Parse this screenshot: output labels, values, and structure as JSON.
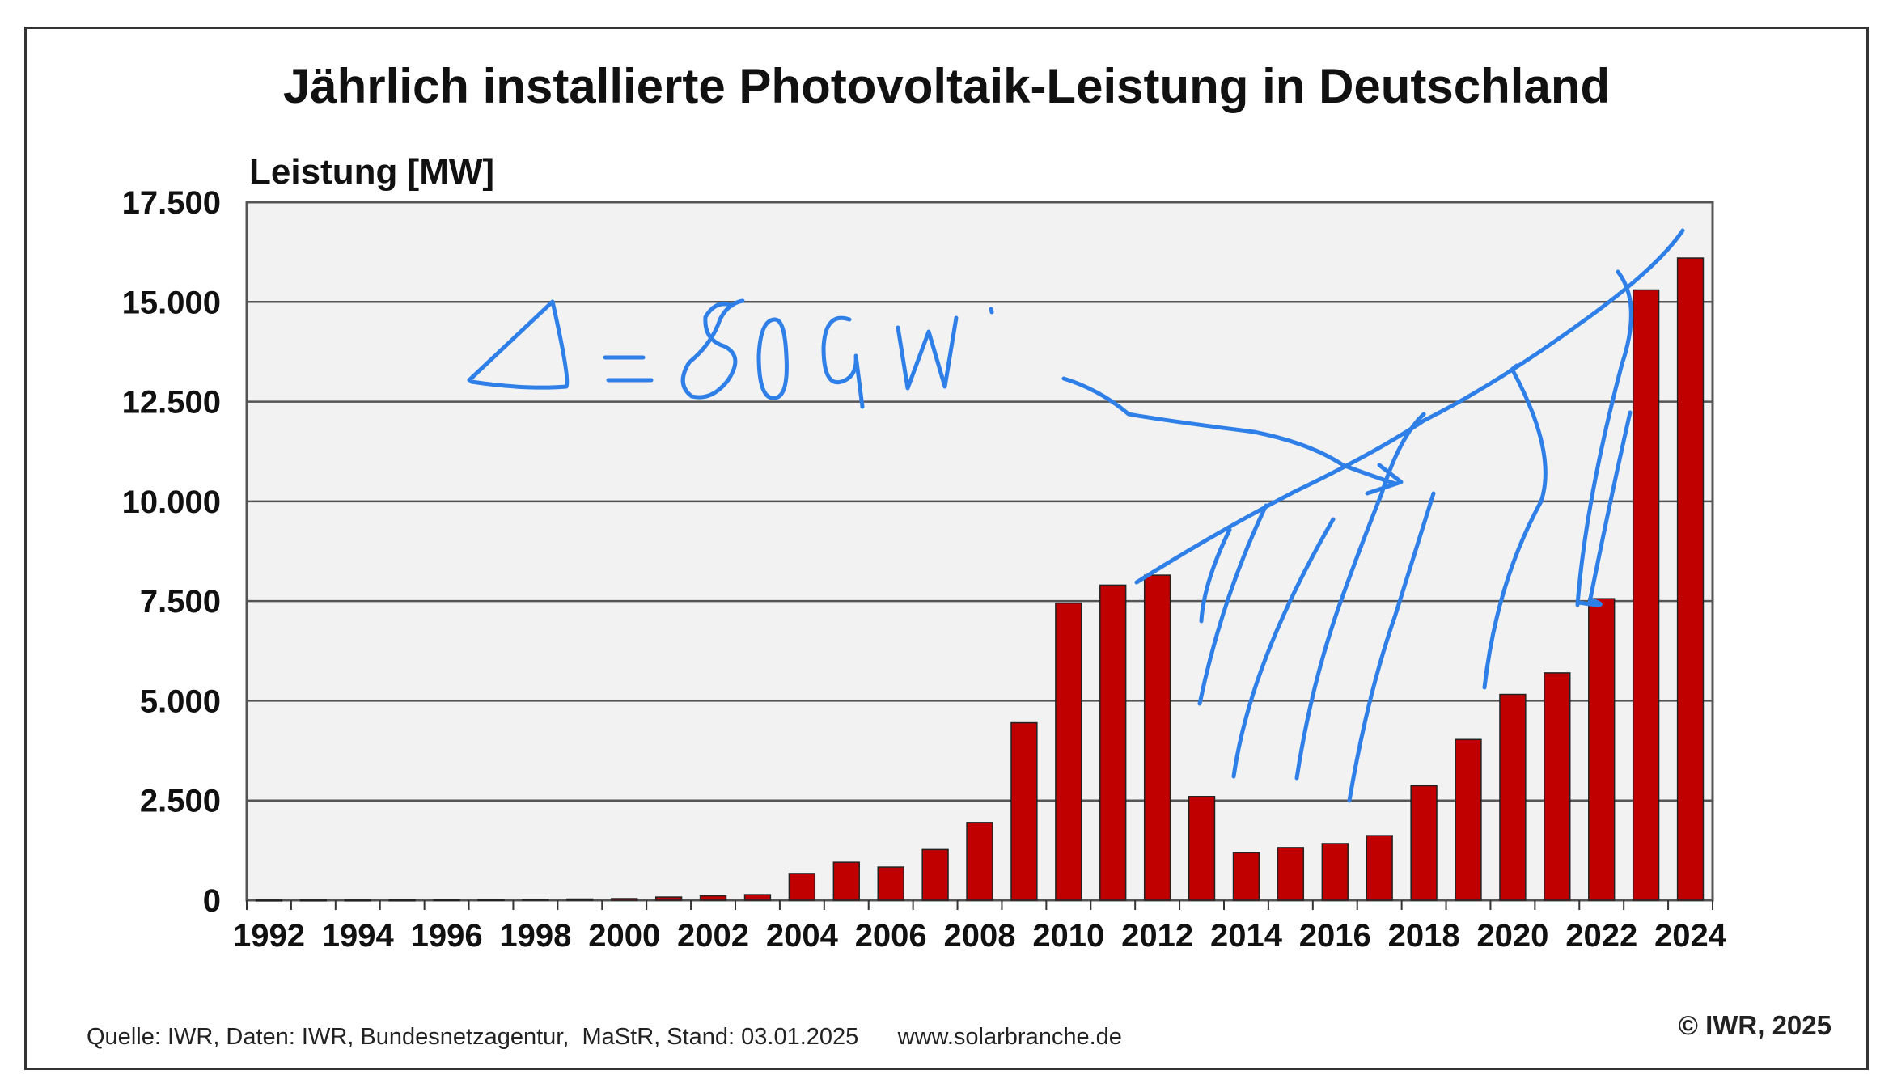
{
  "chart_data": {
    "type": "bar",
    "title": "Jährlich installierte Photovoltaik-Leistung in Deutschland",
    "ylabel": "Leistung [MW]",
    "xlabel": "",
    "ylim": [
      0,
      17500
    ],
    "yticks": [
      0,
      2500,
      5000,
      7500,
      10000,
      12500,
      15000,
      17500
    ],
    "ytick_labels": [
      "0",
      "2.500",
      "5.000",
      "7.500",
      "10.000",
      "12.500",
      "15.000",
      "17.500"
    ],
    "grid": true,
    "bar_color": "#c00000",
    "plot_background": "#f2f2f2",
    "categories": [
      "1992",
      "1993",
      "1994",
      "1995",
      "1996",
      "1997",
      "1998",
      "1999",
      "2000",
      "2001",
      "2002",
      "2003",
      "2004",
      "2005",
      "2006",
      "2007",
      "2008",
      "2009",
      "2010",
      "2011",
      "2012",
      "2013",
      "2014",
      "2015",
      "2016",
      "2017",
      "2018",
      "2019",
      "2020",
      "2021",
      "2022",
      "2023",
      "2024"
    ],
    "xtick_labels": [
      "1992",
      "1994",
      "1996",
      "1998",
      "2000",
      "2002",
      "2004",
      "2006",
      "2008",
      "2010",
      "2012",
      "2014",
      "2016",
      "2018",
      "2020",
      "2022",
      "2024"
    ],
    "values": [
      2,
      3,
      3,
      4,
      10,
      15,
      20,
      30,
      40,
      80,
      110,
      140,
      670,
      950,
      830,
      1270,
      1950,
      4450,
      7450,
      7900,
      8150,
      2600,
      1190,
      1320,
      1420,
      1620,
      2870,
      4030,
      5160,
      5700,
      7560,
      15300,
      16100
    ],
    "annotation": "Δ = 80 GW",
    "annotation_color": "#2f7fe8"
  },
  "footer": {
    "source": "Quelle: IWR, Daten: IWR, Bundesnetzagentur,  MaStR, Stand: 03.01.2025      www.solarbranche.de",
    "copyright": "© IWR, 2025"
  }
}
